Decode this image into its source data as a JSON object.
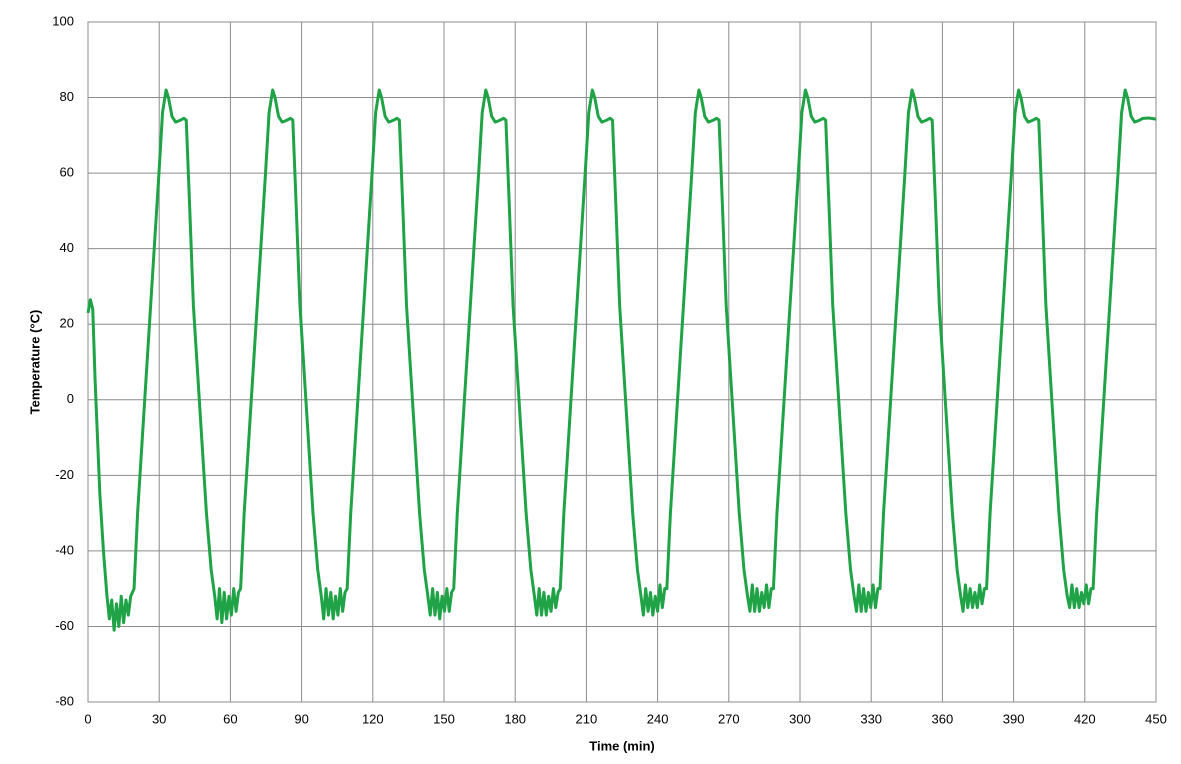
{
  "chart_data": {
    "type": "line",
    "x_label": "Time (min)",
    "y_label": "Temperature (°C)",
    "color": "#1fa346",
    "grid": true,
    "xlim": [
      0,
      450
    ],
    "xticks": [
      0,
      30,
      60,
      90,
      120,
      150,
      180,
      210,
      240,
      270,
      300,
      330,
      360,
      390,
      420,
      450
    ],
    "ylim": [
      -80,
      100
    ],
    "yticks": [
      -80,
      -60,
      -40,
      -20,
      0,
      20,
      40,
      60,
      80,
      100
    ],
    "x": [
      0,
      1,
      2,
      3,
      4,
      5,
      6.5,
      8,
      9,
      10,
      11,
      12,
      13,
      14,
      15,
      16,
      17,
      18,
      19.4,
      20.9,
      23.9,
      26.9,
      29.9,
      31.4,
      32.9,
      33.9,
      35.4,
      36.9,
      38.9,
      40.4,
      41.4,
      42.9,
      44.4,
      45.9,
      47.9,
      49.9,
      51.9,
      53.4,
      54.4,
      55.4,
      56.4,
      57.4,
      58.4,
      59.4,
      60.4,
      61.4,
      62.4,
      63.4,
      64.3,
      65.8,
      68.8,
      71.8,
      74.8,
      76.3,
      77.8,
      78.8,
      80.3,
      81.8,
      83.8,
      85.3,
      86.3,
      87.8,
      89.3,
      90.8,
      92.8,
      94.8,
      96.8,
      98.3,
      99.3,
      100.3,
      101.3,
      102.3,
      103.3,
      104.3,
      105.3,
      106.3,
      107.3,
      108.3,
      109.2,
      110.7,
      113.7,
      116.7,
      119.7,
      121.2,
      122.7,
      123.7,
      125.2,
      126.7,
      128.7,
      130.2,
      131.2,
      132.7,
      134.2,
      135.7,
      137.7,
      139.7,
      141.7,
      143.2,
      144.2,
      145.2,
      146.2,
      147.2,
      148.2,
      149.2,
      150.2,
      151.2,
      152.2,
      153.2,
      154.1,
      155.6,
      158.6,
      161.6,
      164.6,
      166.1,
      167.6,
      168.6,
      170.1,
      171.6,
      173.6,
      175.1,
      176.1,
      177.6,
      179.1,
      180.6,
      182.6,
      184.6,
      186.6,
      188.1,
      189.1,
      190.1,
      191.1,
      192.1,
      193.1,
      194.1,
      195.1,
      196.1,
      197.1,
      198.1,
      199,
      200.5,
      203.5,
      206.5,
      209.5,
      211,
      212.5,
      213.5,
      215,
      216.5,
      218.5,
      220,
      221,
      222.5,
      224,
      225.5,
      227.5,
      229.5,
      231.5,
      233,
      234,
      235,
      236,
      237,
      238,
      239,
      240,
      241,
      242,
      243,
      243.9,
      245.4,
      248.4,
      251.4,
      254.4,
      255.9,
      257.4,
      258.4,
      259.9,
      261.4,
      263.4,
      264.9,
      265.9,
      267.4,
      268.9,
      270.4,
      272.4,
      274.4,
      276.4,
      277.9,
      278.9,
      279.9,
      280.9,
      281.9,
      282.9,
      283.9,
      284.9,
      285.9,
      286.9,
      287.9,
      288.8,
      290.3,
      293.3,
      296.3,
      299.3,
      300.8,
      302.3,
      303.3,
      304.8,
      306.3,
      308.3,
      309.8,
      310.8,
      312.3,
      313.8,
      315.3,
      317.3,
      319.3,
      321.3,
      322.8,
      323.8,
      324.8,
      325.8,
      326.8,
      327.8,
      328.8,
      329.8,
      330.8,
      331.8,
      332.8,
      333.7,
      335.2,
      338.2,
      341.2,
      344.2,
      345.7,
      347.2,
      348.2,
      349.7,
      351.2,
      353.2,
      354.7,
      355.7,
      357.2,
      358.7,
      360.2,
      362.2,
      364.2,
      366.2,
      367.7,
      368.7,
      369.7,
      370.7,
      371.7,
      372.7,
      373.7,
      374.7,
      375.7,
      376.7,
      377.7,
      378.6,
      380.1,
      383.1,
      386.1,
      389.1,
      390.6,
      392.1,
      393.1,
      394.6,
      396.1,
      398.1,
      399.6,
      400.6,
      402.1,
      403.6,
      405.1,
      407.1,
      409.1,
      411.1,
      412.6,
      413.6,
      414.6,
      415.6,
      416.6,
      417.6,
      418.6,
      419.6,
      420.6,
      421.6,
      422.6,
      423.5,
      425,
      428,
      431,
      434,
      435.5,
      437,
      438,
      439.5,
      441,
      443,
      444.5,
      447,
      450
    ],
    "values": [
      23,
      26.5,
      24,
      5,
      -10,
      -25,
      -40,
      -52,
      -58,
      -53,
      -61,
      -54,
      -60,
      -52,
      -59,
      -53,
      -57,
      -52,
      -50,
      -30,
      0,
      30,
      60,
      76,
      82,
      80,
      75,
      73.5,
      74,
      74.5,
      74,
      50,
      25,
      10,
      -10,
      -30,
      -45,
      -52,
      -58,
      -50,
      -59,
      -51,
      -58,
      -52,
      -57,
      -50,
      -56,
      -51,
      -50,
      -30,
      0,
      30,
      60,
      76,
      82,
      80,
      75,
      73.5,
      74,
      74.5,
      74,
      50,
      25,
      10,
      -10,
      -30,
      -45,
      -52,
      -58,
      -50,
      -57,
      -51,
      -58,
      -52,
      -57,
      -50,
      -56,
      -51,
      -50,
      -30,
      0,
      30,
      60,
      76,
      82,
      80,
      75,
      73.5,
      74,
      74.5,
      74,
      50,
      25,
      10,
      -10,
      -30,
      -45,
      -52,
      -57,
      -50,
      -57,
      -51,
      -58,
      -52,
      -56,
      -50,
      -56,
      -51,
      -50,
      -30,
      0,
      30,
      60,
      76,
      82,
      80,
      75,
      73.5,
      74,
      74.5,
      74,
      50,
      25,
      10,
      -10,
      -30,
      -45,
      -52,
      -57,
      -50,
      -57,
      -51,
      -57,
      -52,
      -56,
      -50,
      -55,
      -51,
      -50,
      -30,
      0,
      30,
      60,
      76,
      82,
      80,
      75,
      73.5,
      74,
      74.5,
      74,
      50,
      25,
      10,
      -10,
      -30,
      -45,
      -52,
      -57,
      -50,
      -56,
      -51,
      -57,
      -52,
      -56,
      -49,
      -55,
      -50,
      -50,
      -30,
      0,
      30,
      60,
      76,
      82,
      80,
      75,
      73.5,
      74,
      74.5,
      74,
      50,
      25,
      10,
      -10,
      -30,
      -45,
      -52,
      -56,
      -49,
      -56,
      -50,
      -56,
      -51,
      -55,
      -49,
      -55,
      -50,
      -50,
      -30,
      0,
      30,
      60,
      76,
      82,
      80,
      75,
      73.5,
      74,
      74.5,
      74,
      50,
      25,
      10,
      -10,
      -30,
      -45,
      -52,
      -56,
      -49,
      -56,
      -50,
      -56,
      -51,
      -55,
      -49,
      -55,
      -50,
      -50,
      -30,
      0,
      30,
      60,
      76,
      82,
      80,
      75,
      73.5,
      74,
      74.5,
      74,
      50,
      25,
      10,
      -10,
      -30,
      -45,
      -52,
      -56,
      -49,
      -55,
      -50,
      -55,
      -51,
      -55,
      -49,
      -54,
      -50,
      -50,
      -30,
      0,
      30,
      60,
      76,
      82,
      80,
      75,
      73.5,
      74,
      74.5,
      74,
      50,
      25,
      10,
      -10,
      -30,
      -45,
      -52,
      -55,
      -49,
      -55,
      -50,
      -55,
      -51,
      -54,
      -49,
      -54,
      -50,
      -50,
      -30,
      0,
      30,
      60,
      76,
      82,
      80,
      75,
      73.5,
      74,
      74.5,
      74.6,
      74.3
    ]
  }
}
